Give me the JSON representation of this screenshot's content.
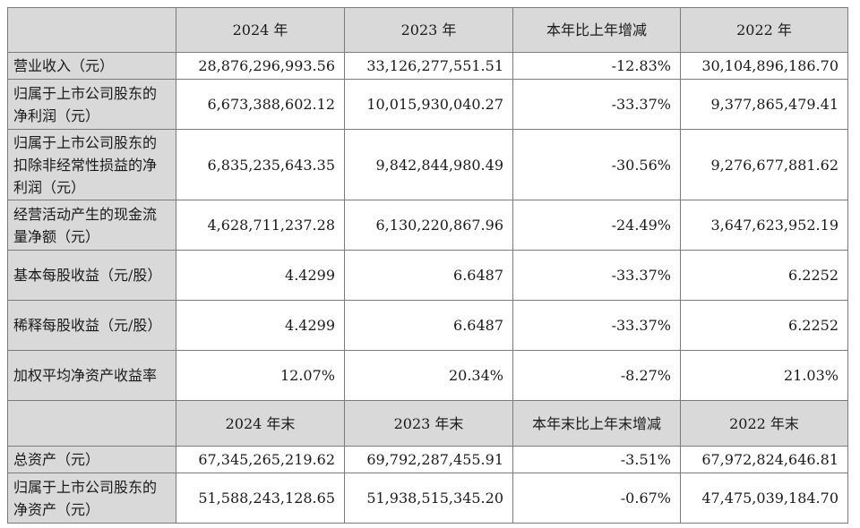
{
  "header1": [
    "2024 年",
    "2023 年",
    "本年比上年增减",
    "2022 年"
  ],
  "rows1": [
    {
      "label": "营业收入（元）",
      "values": [
        "28,876,296,993.56",
        "33,126,277,551.51",
        "-12.83%",
        "30,104,896,186.70"
      ]
    },
    {
      "label": "归属于上市公司股东的净利润（元）",
      "values": [
        "6,673,388,602.12",
        "10,015,930,040.27",
        "-33.37%",
        "9,377,865,479.41"
      ]
    },
    {
      "label": "归属于上市公司股东的扣除非经常性损益的净利润（元）",
      "values": [
        "6,835,235,643.35",
        "9,842,844,980.49",
        "-30.56%",
        "9,276,677,881.62"
      ]
    },
    {
      "label": "经营活动产生的现金流量净额（元）",
      "values": [
        "4,628,711,237.28",
        "6,130,220,867.96",
        "-24.49%",
        "3,647,623,952.19"
      ]
    },
    {
      "label": "基本每股收益（元/股）",
      "values": [
        "4.4299",
        "6.6487",
        "-33.37%",
        "6.2252"
      ]
    },
    {
      "label": "稀释每股收益（元/股）",
      "values": [
        "4.4299",
        "6.6487",
        "-33.37%",
        "6.2252"
      ]
    },
    {
      "label": "加权平均净资产收益率",
      "values": [
        "12.07%",
        "20.34%",
        "-8.27%",
        "21.03%"
      ]
    }
  ],
  "header2": [
    "2024 年末",
    "2023 年末",
    "本年末比上年末增减",
    "2022 年末"
  ],
  "rows2": [
    {
      "label": "总资产（元）",
      "values": [
        "67,345,265,219.62",
        "69,792,287,455.91",
        "-3.51%",
        "67,972,824,646.81"
      ]
    },
    {
      "label": "归属于上市公司股东的净资产（元）",
      "values": [
        "51,588,243,128.65",
        "51,938,515,345.20",
        "-0.67%",
        "47,475,039,184.70"
      ]
    }
  ]
}
